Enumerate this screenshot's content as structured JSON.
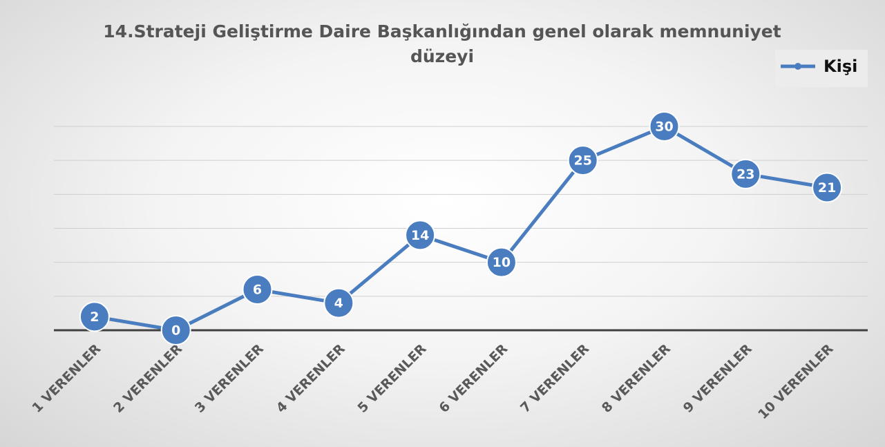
{
  "chart_data": {
    "type": "line",
    "title": "14.Strateji Geliştirme Daire Başkanlığından genel olarak memnuniyet düzeyi",
    "categories": [
      "1  VERENLER",
      "2  VERENLER",
      "3  VERENLER",
      "4  VERENLER",
      "5  VERENLER",
      "6  VERENLER",
      "7  VERENLER",
      "8  VERENLER",
      "9  VERENLER",
      "10  VERENLER"
    ],
    "series": [
      {
        "name": "Kişi",
        "color": "#4a7dbf",
        "values": [
          2,
          0,
          6,
          4,
          14,
          10,
          25,
          30,
          23,
          21
        ]
      }
    ],
    "ylim": [
      0,
      30
    ],
    "yticks": [
      0,
      5,
      10,
      15,
      20,
      25,
      30
    ],
    "grid": true,
    "legend": "top-right"
  }
}
